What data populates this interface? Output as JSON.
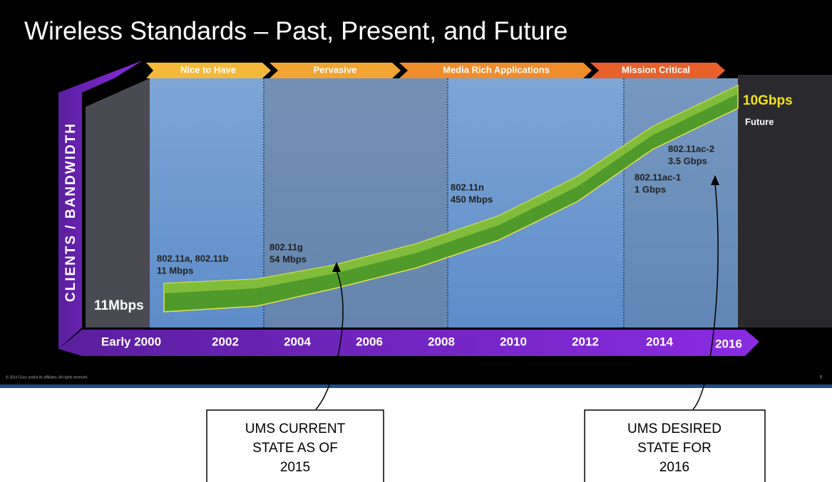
{
  "title": "Wireless Standards – Past, Present, and Future",
  "phases": [
    "Nice to Have",
    "Pervasive",
    "Media Rich Applications",
    "Mission Critical"
  ],
  "y_axis_label": "CLIENTS / BANDWIDTH",
  "x_labels": [
    "Early 2000",
    "2002",
    "2004",
    "2006",
    "2008",
    "2010",
    "2012",
    "2014",
    "2016"
  ],
  "start_label": "11Mbps",
  "end_label": "10Gbps",
  "end_note": "Future",
  "standards": [
    {
      "name": "802.11a, 802.11b",
      "speed": "11 Mbps"
    },
    {
      "name": "802.11g",
      "speed": "54 Mbps"
    },
    {
      "name": "802.11n",
      "speed": "450 Mbps"
    },
    {
      "name": "802.11ac-1",
      "speed": "1 Gbps"
    },
    {
      "name": "802.11ac-2",
      "speed": "3.5 Gbps"
    }
  ],
  "footer": {
    "copyright": "© 2014 Cisco and/or its affiliates. All rights reserved.",
    "page": "6"
  },
  "callouts": [
    {
      "lines": [
        "UMS CURRENT",
        "STATE AS OF",
        "2015"
      ]
    },
    {
      "lines": [
        "UMS DESIRED",
        "STATE FOR",
        "2016"
      ]
    }
  ]
}
